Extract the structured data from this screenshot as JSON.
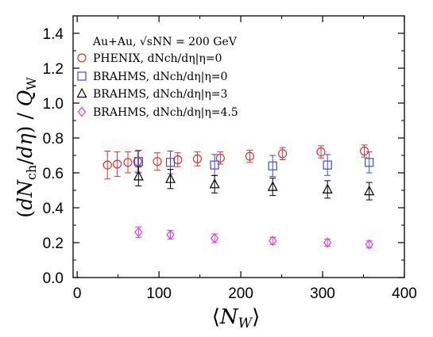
{
  "chart_data": {
    "type": "scatter",
    "title": "",
    "xlabel": "⟨N_W⟩",
    "ylabel": "(dN_ch/dη) / Q_W",
    "xlim": [
      -5,
      400
    ],
    "ylim": [
      0,
      1.5
    ],
    "x_ticks": [
      0,
      100,
      200,
      300,
      400
    ],
    "y_ticks": [
      0.0,
      0.2,
      0.4,
      0.6,
      0.8,
      1.0,
      1.2,
      1.4
    ],
    "x_tick_labels": [
      "0",
      "100",
      "200",
      "300",
      "400"
    ],
    "y_tick_labels": [
      "0.0",
      "0.2",
      "0.4",
      "0.6",
      "0.8",
      "1.0",
      "1.2",
      "1.4"
    ],
    "grid": false,
    "legend_position": "top-left",
    "legend_header": "Au+Au, √sNN = 200 GeV",
    "series": [
      {
        "name": "PHENIX, dNch/dη|η=0",
        "marker": "circle",
        "color": "#e8312f",
        "points": [
          {
            "x": 37,
            "y": 0.645,
            "err": 0.08
          },
          {
            "x": 49,
            "y": 0.65,
            "err": 0.07
          },
          {
            "x": 62,
            "y": 0.66,
            "err": 0.06
          },
          {
            "x": 74,
            "y": 0.665,
            "err": 0.06
          },
          {
            "x": 98,
            "y": 0.665,
            "err": 0.05
          },
          {
            "x": 123,
            "y": 0.675,
            "err": 0.04
          },
          {
            "x": 147,
            "y": 0.68,
            "err": 0.04
          },
          {
            "x": 175,
            "y": 0.685,
            "err": 0.035
          },
          {
            "x": 211,
            "y": 0.695,
            "err": 0.035
          },
          {
            "x": 251,
            "y": 0.71,
            "err": 0.035
          },
          {
            "x": 298,
            "y": 0.72,
            "err": 0.035
          },
          {
            "x": 351,
            "y": 0.725,
            "err": 0.035
          }
        ]
      },
      {
        "name": "BRAHMS, dNch/dη|η=0",
        "marker": "square",
        "color": "#3b49e0",
        "points": [
          {
            "x": 75,
            "y": 0.665,
            "err": 0.065
          },
          {
            "x": 114,
            "y": 0.66,
            "err": 0.065
          },
          {
            "x": 168,
            "y": 0.645,
            "err": 0.06
          },
          {
            "x": 239,
            "y": 0.64,
            "err": 0.06
          },
          {
            "x": 306,
            "y": 0.645,
            "err": 0.06
          },
          {
            "x": 357,
            "y": 0.66,
            "err": 0.06
          }
        ]
      },
      {
        "name": "BRAHMS, dNch/dη|η=3",
        "marker": "triangle",
        "color": "#000000",
        "points": [
          {
            "x": 75,
            "y": 0.58,
            "err": 0.055
          },
          {
            "x": 114,
            "y": 0.565,
            "err": 0.055
          },
          {
            "x": 168,
            "y": 0.535,
            "err": 0.05
          },
          {
            "x": 239,
            "y": 0.52,
            "err": 0.05
          },
          {
            "x": 306,
            "y": 0.505,
            "err": 0.05
          },
          {
            "x": 357,
            "y": 0.495,
            "err": 0.05
          }
        ]
      },
      {
        "name": "BRAHMS, dNch/dη|η=4.5",
        "marker": "diamond",
        "color": "#e33de3",
        "points": [
          {
            "x": 75,
            "y": 0.26,
            "err": 0.03
          },
          {
            "x": 114,
            "y": 0.245,
            "err": 0.025
          },
          {
            "x": 168,
            "y": 0.225,
            "err": 0.025
          },
          {
            "x": 239,
            "y": 0.21,
            "err": 0.02
          },
          {
            "x": 306,
            "y": 0.2,
            "err": 0.02
          },
          {
            "x": 357,
            "y": 0.19,
            "err": 0.02
          }
        ]
      }
    ]
  }
}
